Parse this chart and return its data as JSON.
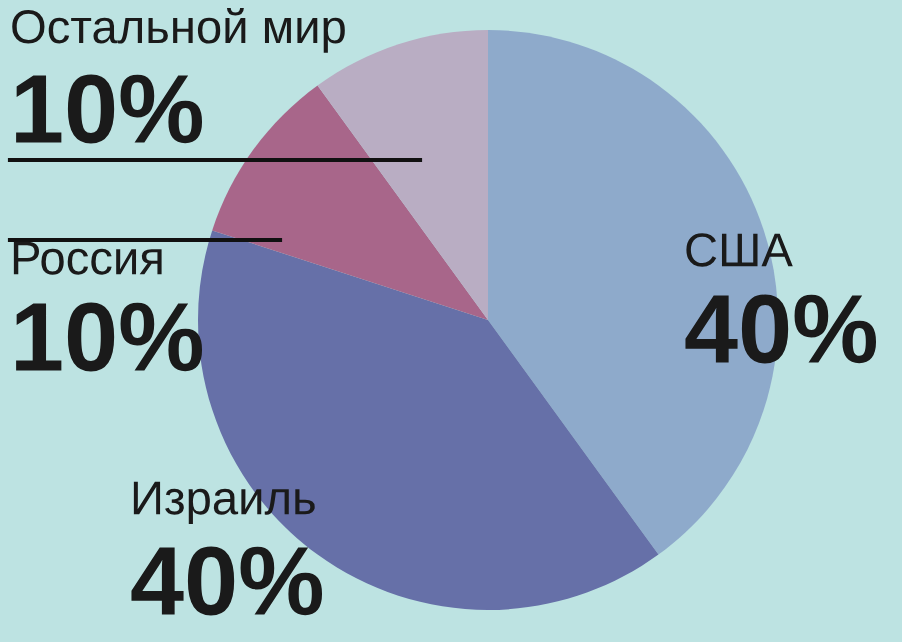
{
  "chart_data": {
    "type": "pie",
    "categories": [
      "США",
      "Израиль",
      "Россия",
      "Остальной мир"
    ],
    "values": [
      40,
      40,
      10,
      10
    ],
    "value_labels": [
      "40%",
      "40%",
      "10%",
      "10%"
    ],
    "colors": [
      "#8eaacb",
      "#6670a8",
      "#a8668a",
      "#b9adc3"
    ],
    "legend": false
  }
}
